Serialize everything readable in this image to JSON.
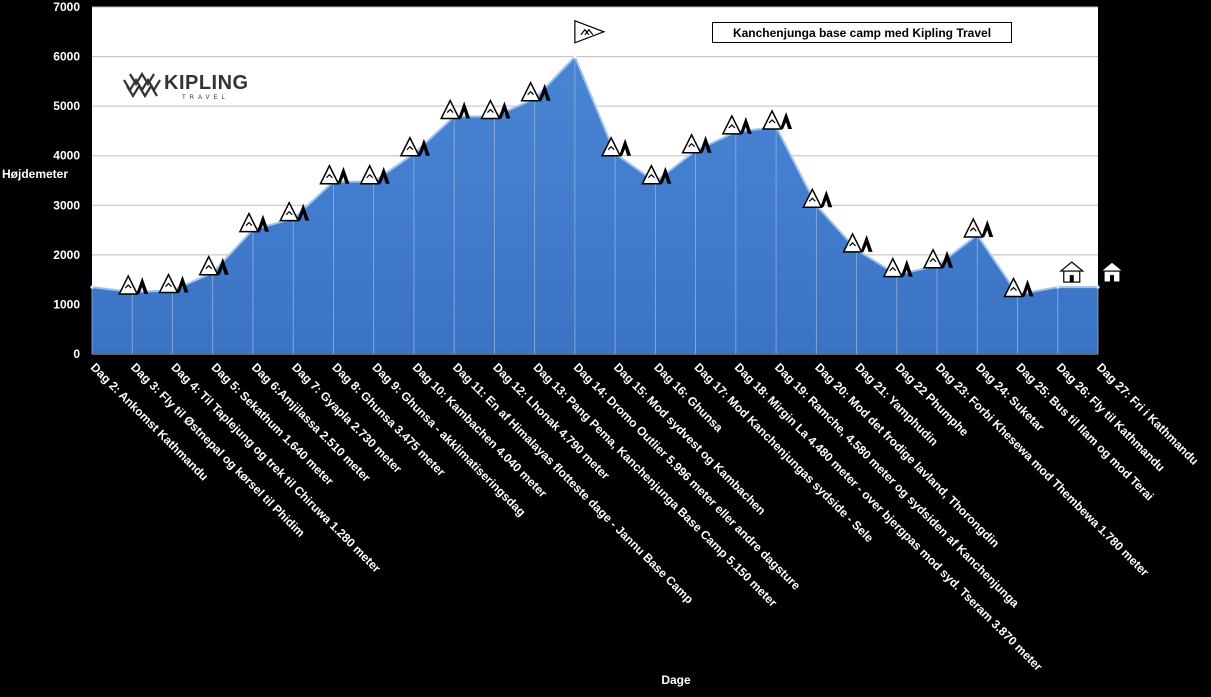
{
  "chart_data": {
    "type": "area",
    "title": "Kanchenjunga base camp med Kipling Travel",
    "xlabel": "Dage",
    "ylabel": "Højdemeter",
    "ylim": [
      0,
      7000
    ],
    "yticks": [
      0,
      1000,
      2000,
      3000,
      4000,
      5000,
      6000,
      7000
    ],
    "grid": true,
    "legend": "none",
    "fill_color": "#3b73c4",
    "line_color": "#2a5ca8",
    "categories": [
      "Dag 2: Ankomst Kathmandu",
      "Dag 3: Fly til Østnepal og kørsel til Phidim",
      "Dag 4: Til Taplejung og trek til Chiruwa 1.280 meter",
      "Dag 5: Sekathum 1.640 meter",
      "Dag 6:Amjilassa 2.510 meter",
      "Dag 7: Gyapla 2.730 meter",
      "Dag 8: Ghunsa 3.475 meter",
      "Dag 9: Ghunsa - akklimatiseringsdag",
      "Dag 10: Kambachen 4.040 meter",
      "Dag 11: En af Himalayas flotteste dage - Jannu Base Camp",
      "Dag 12: Lhonak 4.790 meter",
      "Dag 13: Pang Pema, Kanchenjunga Base Camp 5.150 meter",
      "Dag 14: Dromo Outlier 5.996 meter eller andre dagsture",
      "Dag 15: Mod sydvest og Kambachen",
      "Dag 16: Ghunsa",
      "Dag 17: Mod Kanchenjungas sydside - Sele",
      "Dag 18: Mirgin La 4.480 meter - over bjergpas mod syd. Tseram 3.870 meter",
      "Dag 19: Ramche, 4.580 meter og sydsiden af Kanchenjunga",
      "Dag 20: Mod det frodige lavland, Thorongdin",
      "Dag 21: Yamphudin",
      "Dag 22 Phumphe",
      "Dag 23: Forbi Khesewa mod Thembewa 1.780 meter",
      "Dag 24: Suketar",
      "Dag 25: Bus til Ilam og mod Terai",
      "Dag 26: Fly til Kathmandu",
      "Dag 27: Fri i Kathmandu"
    ],
    "values": [
      1350,
      1250,
      1280,
      1640,
      2510,
      2730,
      3475,
      3475,
      4040,
      4790,
      4790,
      5150,
      5996,
      4040,
      3475,
      4100,
      4480,
      4580,
      3000,
      2100,
      1600,
      1780,
      2400,
      1200,
      1350,
      1350
    ],
    "markers": [
      "none",
      "tent",
      "tent",
      "tent",
      "tent",
      "tent",
      "tent",
      "tent",
      "tent",
      "tent",
      "tent",
      "tent",
      "flag",
      "tent",
      "tent",
      "tent",
      "tent",
      "tent",
      "tent",
      "tent",
      "tent",
      "tent",
      "tent",
      "tent",
      "house",
      "house"
    ]
  }
}
